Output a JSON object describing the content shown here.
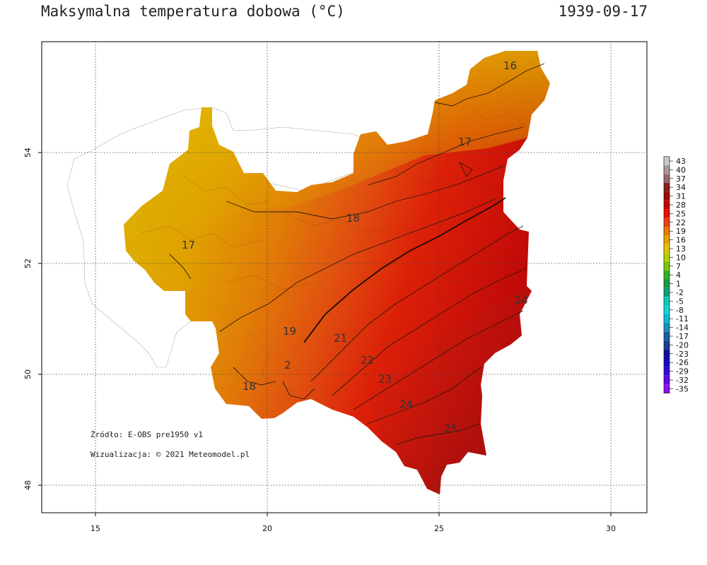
{
  "header": {
    "title": "Maksymalna temperatura dobowa (°C)",
    "date": "1939-09-17"
  },
  "axes": {
    "x_ticks": [
      "15",
      "20",
      "25",
      "30"
    ],
    "y_ticks": [
      "54",
      "52",
      "50",
      "48"
    ]
  },
  "credits": {
    "source": "Źródło: E-OBS pre1950 v1",
    "visualization": "Wizualizacja: © 2021 Meteomodel.pl"
  },
  "contour_labels": [
    "16",
    "17",
    "18",
    "17",
    "19",
    "21",
    "22",
    "23",
    "24",
    "25",
    "24",
    "18",
    "2"
  ],
  "legend": {
    "labels": [
      "43",
      "40",
      "37",
      "34",
      "31",
      "28",
      "25",
      "22",
      "19",
      "16",
      "13",
      "10",
      "7",
      "4",
      "1",
      "-2",
      "-5",
      "-8",
      "-11",
      "-14",
      "-17",
      "-20",
      "-23",
      "-26",
      "-29",
      "-32",
      "-35"
    ],
    "colors": [
      "#c8c8c8",
      "#a89898",
      "#9a6a6a",
      "#8a2020",
      "#a00808",
      "#c80000",
      "#e81000",
      "#e84010",
      "#e87a08",
      "#e8a000",
      "#e0c400",
      "#b4d400",
      "#78c800",
      "#30b428",
      "#189c40",
      "#10a078",
      "#10c8b4",
      "#10d8d8",
      "#10b8d0",
      "#1890b8",
      "#1860a0",
      "#183c90",
      "#1010a0",
      "#1808c0",
      "#3808d8",
      "#6408e8",
      "#8c10f0"
    ]
  },
  "colors": {
    "background": "#ffffff",
    "frame": "#000000",
    "grid": "#444444"
  }
}
